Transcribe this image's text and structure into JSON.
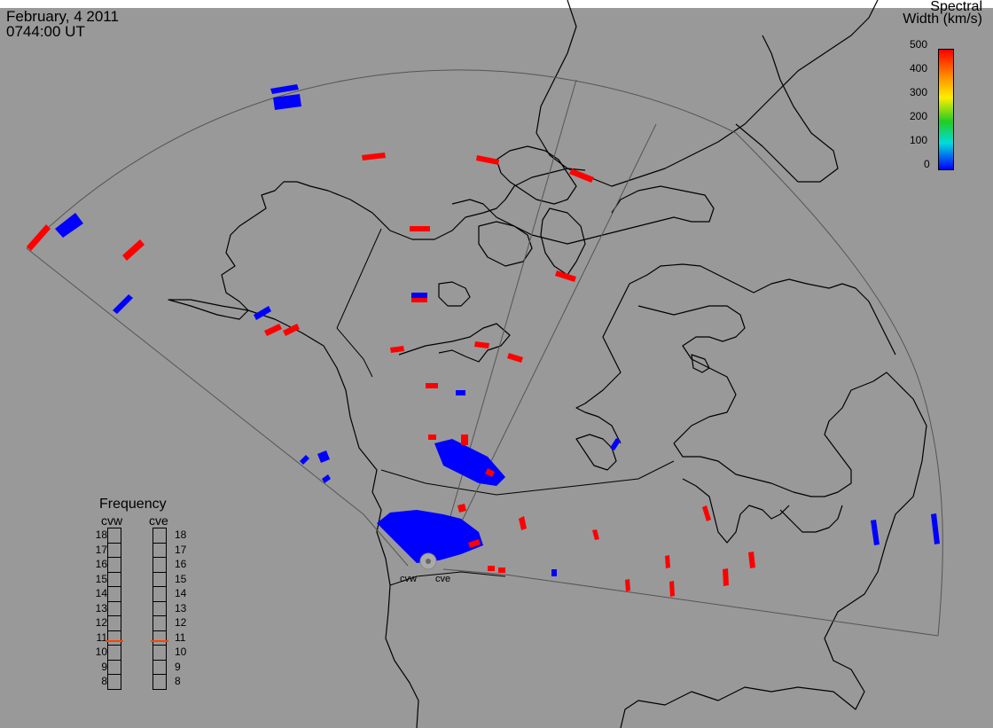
{
  "header": {
    "date": "February, 4 2011",
    "time": "0744:00 UT"
  },
  "legend": {
    "title_line1": "Spectral",
    "title_line2": "Width (km/s)",
    "ticks": [
      "500",
      "400",
      "300",
      "200",
      "100",
      "0"
    ]
  },
  "frequency": {
    "title": "Frequency",
    "sites": [
      "cvw",
      "cve"
    ],
    "levels": [
      "18",
      "17",
      "16",
      "15",
      "14",
      "13",
      "12",
      "11",
      "10",
      "9",
      "8"
    ],
    "active_mhz": [
      10.8,
      10.8
    ]
  },
  "radars": {
    "west_label": "cvw",
    "east_label": "cve"
  },
  "colors": {
    "background": "#999999",
    "high_width": "#ff0000",
    "low_width": "#0000ff",
    "freq_marker": "#ff4400"
  }
}
